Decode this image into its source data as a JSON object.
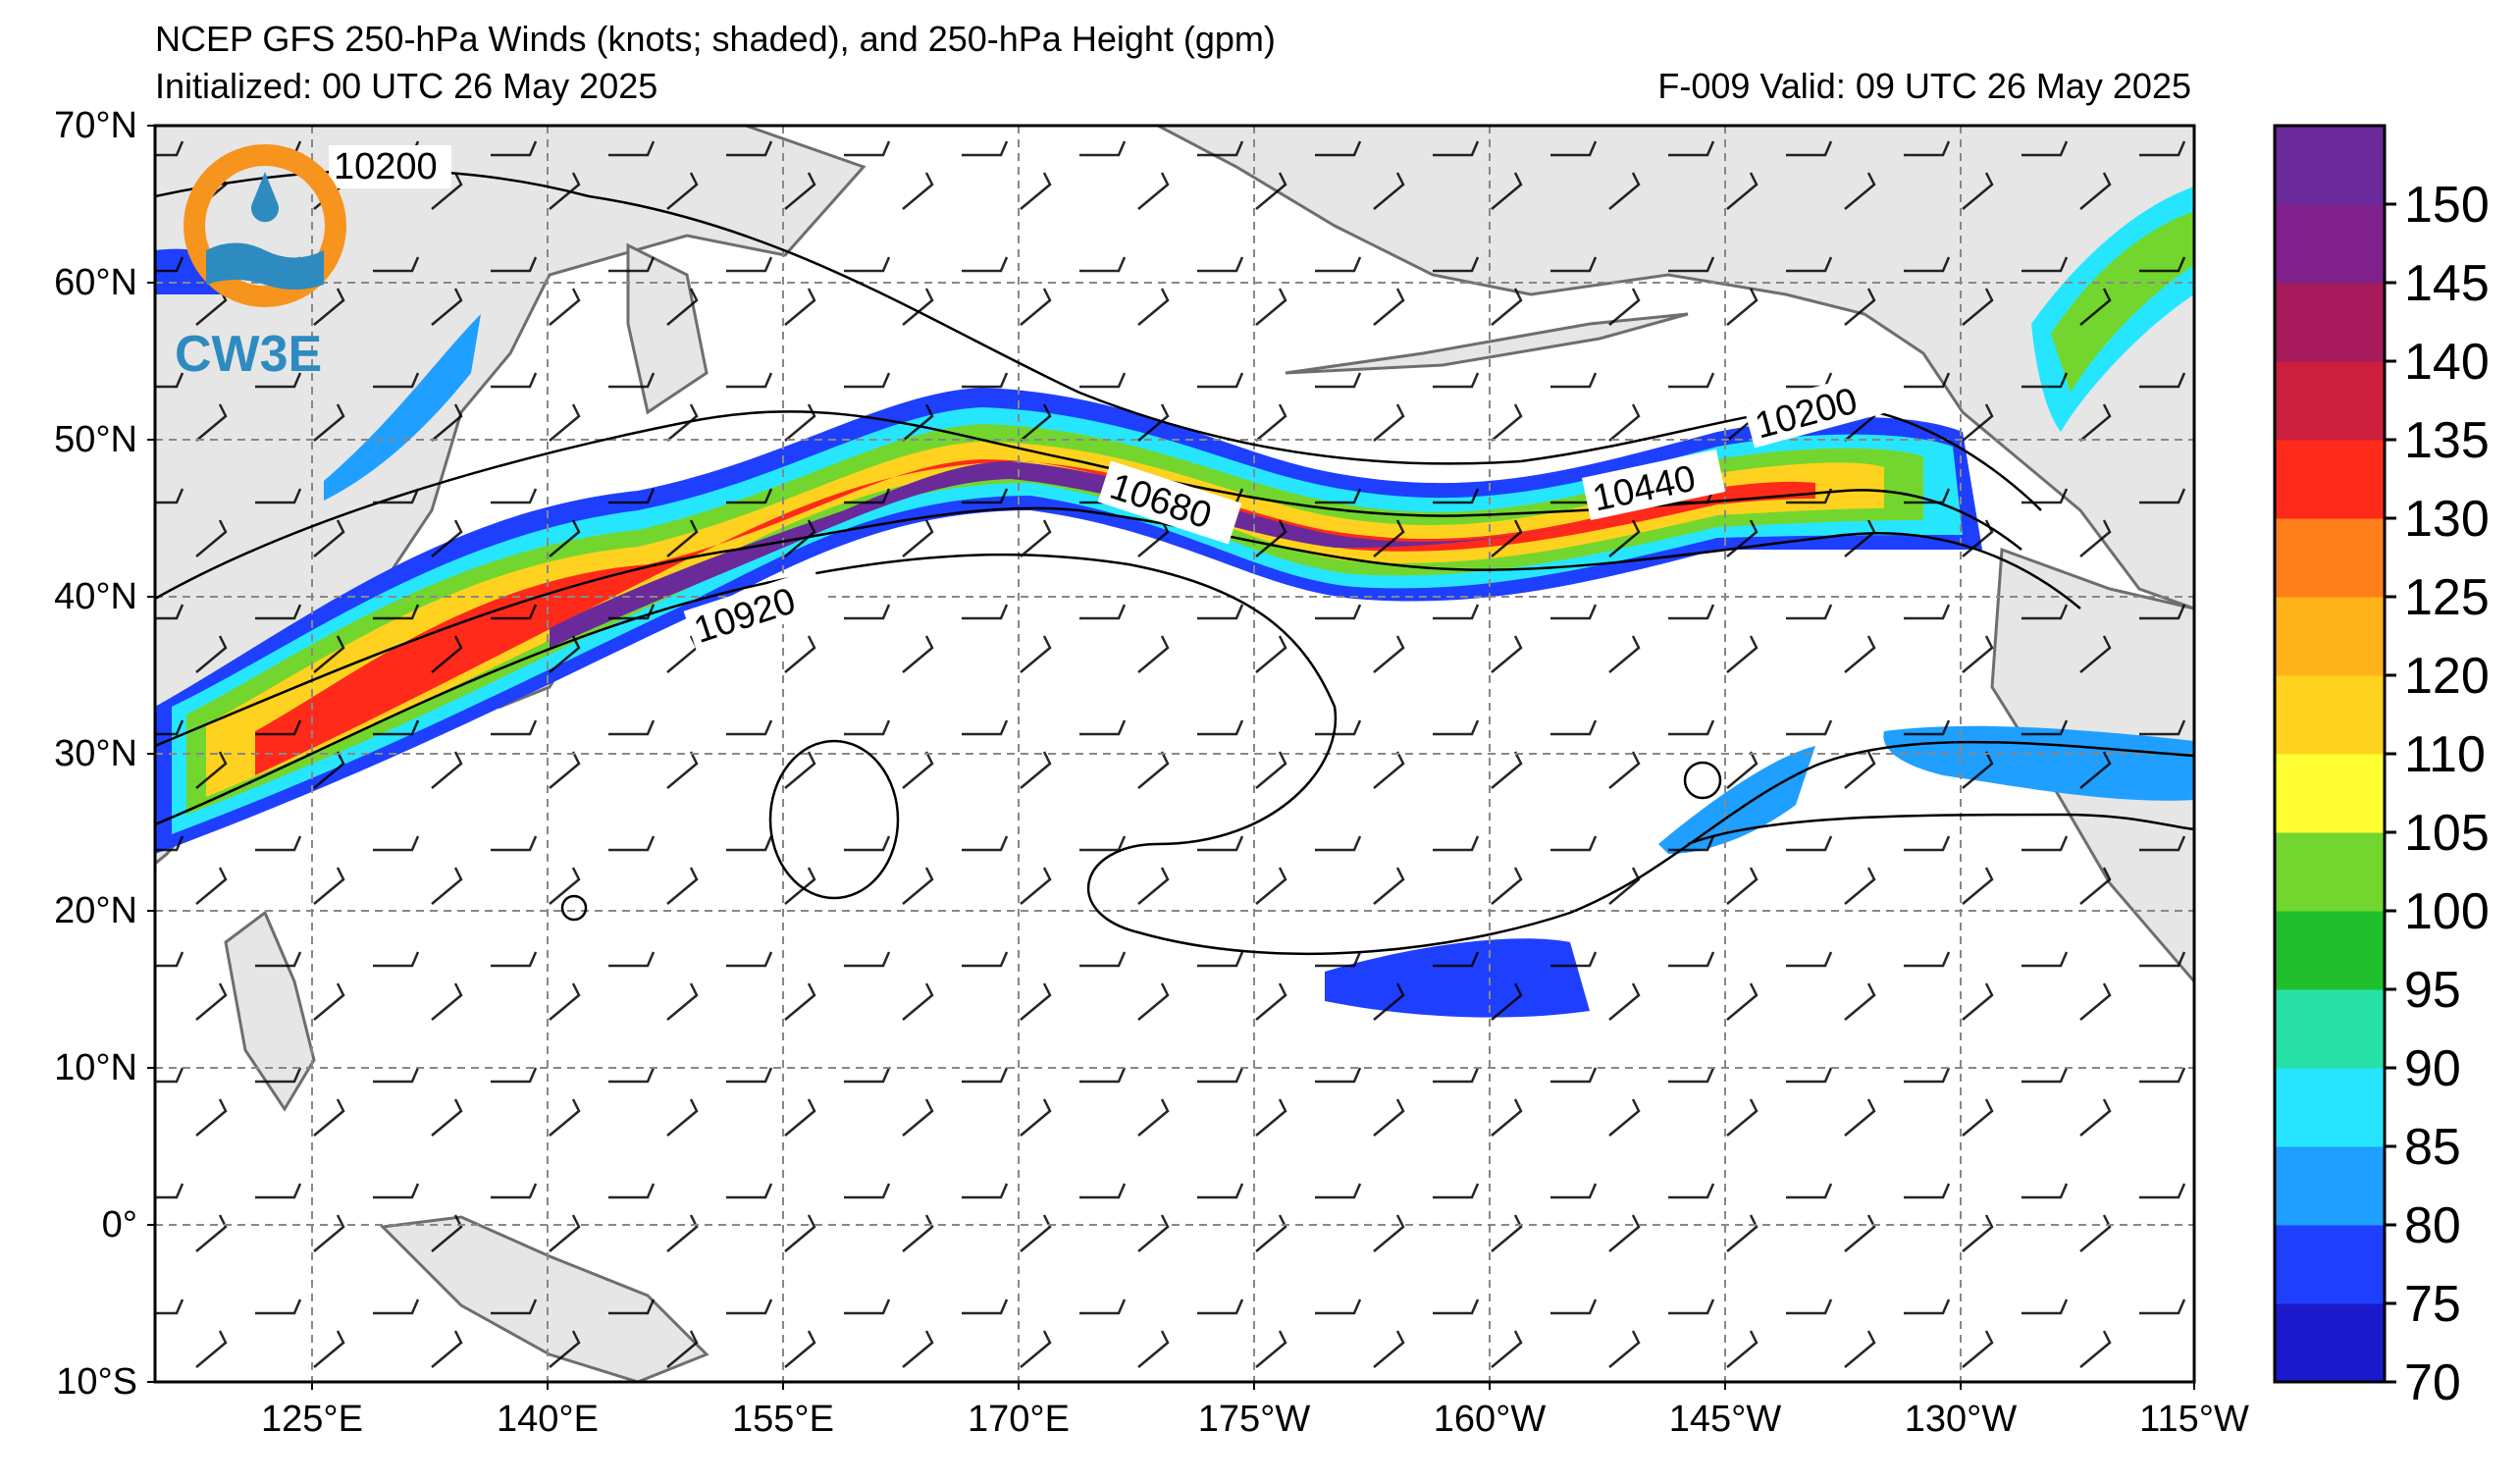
{
  "header": {
    "title_line1": "NCEP GFS 250-hPa Winds (knots; shaded), and 250-hPa Height (gpm)",
    "init_text": "Initialized: 00 UTC 26 May 2025",
    "valid_text": "F-009  Valid: 09 UTC 26 May 2025"
  },
  "logo": {
    "text": "CW3E",
    "colors": {
      "ring": "#f7941d",
      "wave": "#2e8bbf",
      "text": "#2e8bbf"
    }
  },
  "map": {
    "projection": "equirectangular",
    "lon_range": [
      115,
      245
    ],
    "lat_range": [
      -10,
      70
    ],
    "lat_ticks": [
      "70°N",
      "60°N",
      "50°N",
      "40°N",
      "30°N",
      "20°N",
      "10°N",
      "0°",
      "10°S"
    ],
    "lon_ticks": [
      "125°E",
      "140°E",
      "155°E",
      "170°E",
      "175°W",
      "160°W",
      "145°W",
      "130°W",
      "115°W"
    ],
    "land_color": "#e6e6e6",
    "coast_color": "#6e6e6e",
    "grid": "dashed gray",
    "height_contour_labels": [
      "10200",
      "10440",
      "10680",
      "10920",
      "10200"
    ]
  },
  "colorbar": {
    "unit": "knots",
    "levels": [
      70,
      75,
      80,
      85,
      90,
      95,
      100,
      105,
      110,
      120,
      125,
      130,
      135,
      140,
      145,
      150
    ],
    "tick_labels": [
      "150",
      "145",
      "140",
      "135",
      "130",
      "125",
      "120",
      "110",
      "105",
      "100",
      "95",
      "90",
      "85",
      "80",
      "75",
      "70"
    ],
    "colors": [
      "#1a1acc",
      "#1f3fff",
      "#1f9fff",
      "#26e6ff",
      "#26e0a6",
      "#1fbf2e",
      "#73d62e",
      "#ffff33",
      "#ffd21f",
      "#ffb31a",
      "#ff7f1a",
      "#ff2a1a",
      "#cc1f3d",
      "#a61a5c",
      "#80208a",
      "#6a2a9a"
    ]
  }
}
